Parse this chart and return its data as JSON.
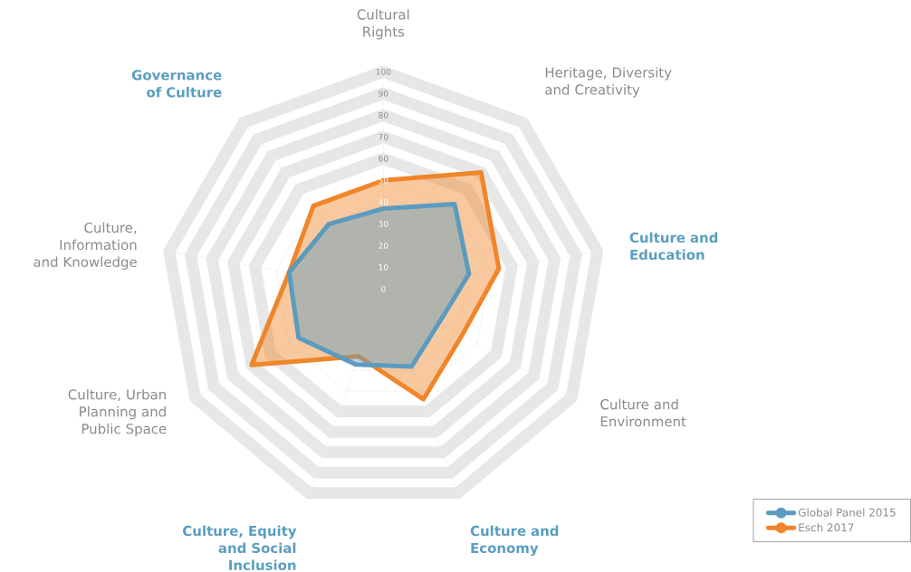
{
  "chart_data": {
    "type": "radar",
    "categories": [
      "Cultural Rights",
      "Heritage, Diversity and Creativity",
      "Culture and Education",
      "Culture and Environment",
      "Culture and Economy",
      "Culture, Equity and Social Inclusion",
      "Culture, Urban Planning and Public Space",
      "Culture, Information and Knowledge",
      "Governance of Culture"
    ],
    "series": [
      {
        "name": "Global Panel 2015",
        "color": "#5b9bbf",
        "values": [
          37,
          51,
          40,
          30,
          38,
          37,
          45,
          44,
          39
        ]
      },
      {
        "name": "Esch 2017",
        "color": "#f0852a",
        "values": [
          50,
          70,
          54,
          42,
          54,
          33,
          70,
          44,
          50
        ]
      }
    ],
    "ylim": [
      0,
      100
    ],
    "yticks": [
      0,
      10,
      20,
      30,
      40,
      50,
      60,
      70,
      80,
      90,
      100
    ],
    "legend": "bottom right",
    "marker": "none"
  }
}
